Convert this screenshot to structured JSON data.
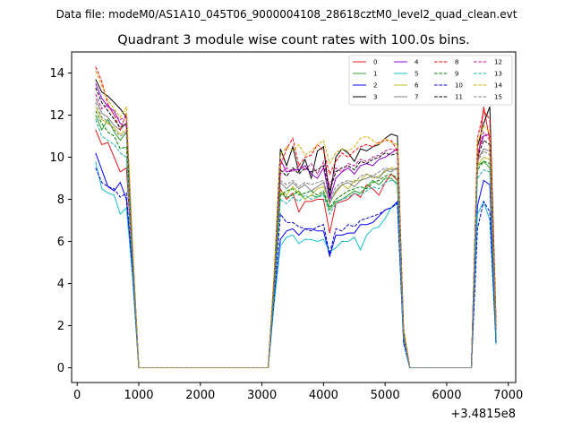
{
  "chart_data": {
    "type": "line",
    "suptitle": "Data file: modeM0/AS1A10_045T06_9000004108_28618cztM0_level2_quad_clean.evt",
    "title": "Quadrant 3 module wise count rates with 100.0s bins.",
    "xlabel": "",
    "ylabel": "",
    "x_offset_label": "+3.4815e8",
    "xlim": [
      -90,
      7120
    ],
    "ylim": [
      -0.7,
      15.0
    ],
    "x_ticks": [
      0,
      1000,
      2000,
      3000,
      4000,
      5000,
      6000,
      7000
    ],
    "y_ticks": [
      0,
      2,
      4,
      6,
      8,
      10,
      12,
      14
    ],
    "grid": false,
    "legend": "top-right, 4 columns",
    "x": [
      300,
      400,
      500,
      600,
      700,
      800,
      900,
      1000,
      1100,
      1200,
      1300,
      1400,
      1500,
      1600,
      1700,
      1800,
      1900,
      2000,
      2100,
      2200,
      2300,
      2400,
      2500,
      2600,
      2700,
      2800,
      2900,
      3000,
      3100,
      3200,
      3300,
      3400,
      3500,
      3600,
      3700,
      3800,
      3900,
      4000,
      4100,
      4200,
      4300,
      4400,
      4500,
      4600,
      4700,
      4800,
      4900,
      5000,
      5100,
      5200,
      5300,
      5400,
      5500,
      5600,
      5700,
      5800,
      5900,
      6000,
      6100,
      6200,
      6300,
      6400,
      6500,
      6600,
      6700,
      6800
    ],
    "series": [
      {
        "name": "0",
        "color": "#e41a1c",
        "dash": false,
        "values": [
          11.3,
          10.6,
          10.7,
          10.0,
          9.3,
          9.5,
          4.8,
          0,
          0,
          0,
          0,
          0,
          0,
          0,
          0,
          0,
          0,
          0,
          0,
          0,
          0,
          0,
          0,
          0,
          0,
          0,
          0,
          0,
          0,
          3.5,
          8.5,
          8.0,
          8.3,
          7.4,
          7.9,
          7.9,
          8.0,
          8.0,
          6.4,
          7.8,
          7.9,
          8.0,
          8.3,
          8.1,
          8.7,
          8.5,
          8.2,
          8.8,
          9.2,
          8.9,
          1.5,
          0,
          0,
          0,
          0,
          0,
          0,
          0,
          0,
          0,
          0,
          0,
          9.5,
          12.4,
          10.8,
          1.2
        ]
      },
      {
        "name": "1",
        "color": "#2ca02c",
        "dash": false,
        "values": [
          12.0,
          11.3,
          11.8,
          11.2,
          10.8,
          11.2,
          5.2,
          0,
          0,
          0,
          0,
          0,
          0,
          0,
          0,
          0,
          0,
          0,
          0,
          0,
          0,
          0,
          0,
          0,
          0,
          0,
          0,
          0,
          0,
          3.8,
          8.3,
          8.1,
          8.2,
          8.4,
          8.0,
          8.2,
          8.1,
          8.3,
          7.5,
          7.9,
          8.0,
          8.2,
          8.4,
          8.3,
          8.6,
          8.9,
          8.7,
          9.0,
          9.0,
          8.7,
          1.4,
          0,
          0,
          0,
          0,
          0,
          0,
          0,
          0,
          0,
          0,
          0,
          9.6,
          9.8,
          9.5,
          1.3
        ]
      },
      {
        "name": "2",
        "color": "#0000ff",
        "dash": false,
        "values": [
          10.2,
          9.4,
          8.6,
          8.4,
          8.8,
          8.0,
          4.4,
          0,
          0,
          0,
          0,
          0,
          0,
          0,
          0,
          0,
          0,
          0,
          0,
          0,
          0,
          0,
          0,
          0,
          0,
          0,
          0,
          0,
          0,
          3.2,
          6.1,
          6.5,
          6.6,
          6.3,
          6.6,
          6.6,
          6.5,
          6.5,
          5.3,
          6.3,
          6.3,
          6.4,
          6.4,
          6.8,
          6.8,
          6.9,
          7.2,
          7.5,
          7.6,
          7.9,
          1.2,
          0,
          0,
          0,
          0,
          0,
          0,
          0,
          0,
          0,
          0,
          0,
          7.7,
          8.9,
          8.7,
          1.2
        ]
      },
      {
        "name": "3",
        "color": "#000000",
        "dash": false,
        "values": [
          13.7,
          13.1,
          12.9,
          12.6,
          12.3,
          11.9,
          5.6,
          0,
          0,
          0,
          0,
          0,
          0,
          0,
          0,
          0,
          0,
          0,
          0,
          0,
          0,
          0,
          0,
          0,
          0,
          0,
          0,
          0,
          0,
          4.4,
          10.4,
          9.6,
          10.5,
          9.3,
          9.9,
          9.0,
          10.3,
          10.5,
          8.1,
          10.0,
          10.4,
          10.2,
          9.8,
          10.4,
          10.3,
          10.5,
          10.6,
          10.9,
          11.1,
          11.0,
          1.8,
          0,
          0,
          0,
          0,
          0,
          0,
          0,
          0,
          0,
          0,
          0,
          10.5,
          11.6,
          12.4,
          2.2
        ]
      },
      {
        "name": "4",
        "color": "#9400d3",
        "dash": false,
        "values": [
          13.5,
          12.8,
          12.4,
          12.2,
          11.6,
          11.5,
          5.5,
          0,
          0,
          0,
          0,
          0,
          0,
          0,
          0,
          0,
          0,
          0,
          0,
          0,
          0,
          0,
          0,
          0,
          0,
          0,
          0,
          0,
          0,
          4.2,
          9.9,
          9.3,
          9.4,
          9.4,
          9.6,
          9.2,
          9.0,
          9.5,
          8.0,
          9.0,
          9.3,
          9.5,
          9.2,
          9.6,
          9.7,
          9.6,
          9.9,
          10.0,
          10.2,
          10.4,
          1.7,
          0,
          0,
          0,
          0,
          0,
          0,
          0,
          0,
          0,
          0,
          0,
          10.2,
          11.0,
          11.1,
          2.0
        ]
      },
      {
        "name": "5",
        "color": "#17becf",
        "dash": false,
        "values": [
          9.8,
          8.5,
          8.3,
          8.2,
          7.3,
          7.6,
          4.3,
          0,
          0,
          0,
          0,
          0,
          0,
          0,
          0,
          0,
          0,
          0,
          0,
          0,
          0,
          0,
          0,
          0,
          0,
          0,
          0,
          0,
          0,
          3.1,
          5.8,
          6.2,
          6.3,
          5.9,
          6.1,
          6.1,
          6.0,
          6.1,
          5.5,
          5.7,
          6.0,
          6.0,
          6.2,
          5.6,
          6.3,
          6.6,
          6.7,
          7.1,
          7.6,
          7.8,
          1.2,
          0,
          0,
          0,
          0,
          0,
          0,
          0,
          0,
          0,
          0,
          0,
          7.3,
          7.9,
          7.0,
          1.1
        ]
      },
      {
        "name": "6",
        "color": "#bcbd22",
        "dash": false,
        "values": [
          12.4,
          11.8,
          11.6,
          11.4,
          11.1,
          11.3,
          5.3,
          0,
          0,
          0,
          0,
          0,
          0,
          0,
          0,
          0,
          0,
          0,
          0,
          0,
          0,
          0,
          0,
          0,
          0,
          0,
          0,
          0,
          0,
          3.9,
          8.4,
          8.2,
          8.6,
          8.3,
          8.0,
          8.2,
          8.5,
          8.6,
          7.9,
          8.3,
          8.7,
          8.5,
          8.9,
          8.9,
          9.2,
          9.0,
          9.1,
          9.3,
          9.5,
          9.4,
          1.5,
          0,
          0,
          0,
          0,
          0,
          0,
          0,
          0,
          0,
          0,
          0,
          9.6,
          10.0,
          9.9,
          1.6
        ]
      },
      {
        "name": "7",
        "color": "#7f7f7f",
        "dash": false,
        "values": [
          12.8,
          12.1,
          11.9,
          11.5,
          11.3,
          11.6,
          5.4,
          0,
          0,
          0,
          0,
          0,
          0,
          0,
          0,
          0,
          0,
          0,
          0,
          0,
          0,
          0,
          0,
          0,
          0,
          0,
          0,
          0,
          0,
          4.0,
          8.8,
          8.5,
          8.8,
          8.5,
          8.7,
          8.4,
          8.6,
          8.8,
          7.8,
          8.4,
          8.7,
          8.8,
          8.6,
          8.9,
          9.0,
          9.1,
          9.0,
          9.4,
          9.3,
          9.5,
          1.6,
          0,
          0,
          0,
          0,
          0,
          0,
          0,
          0,
          0,
          0,
          0,
          9.9,
          10.4,
          10.3,
          1.7
        ]
      },
      {
        "name": "8",
        "color": "#ff0000",
        "dash": true,
        "values": [
          14.3,
          13.6,
          12.5,
          12.0,
          11.3,
          12.1,
          5.7,
          0,
          0,
          0,
          0,
          0,
          0,
          0,
          0,
          0,
          0,
          0,
          0,
          0,
          0,
          0,
          0,
          0,
          0,
          0,
          0,
          0,
          0,
          4.5,
          9.6,
          10.4,
          10.9,
          9.6,
          10.0,
          10.1,
          10.6,
          10.3,
          9.2,
          9.8,
          10.2,
          10.0,
          10.3,
          10.5,
          10.6,
          10.5,
          10.7,
          10.8,
          10.8,
          10.3,
          1.8,
          0,
          0,
          0,
          0,
          0,
          0,
          0,
          0,
          0,
          0,
          0,
          10.9,
          12.2,
          11.8,
          2.4
        ]
      },
      {
        "name": "9",
        "color": "#008000",
        "dash": true,
        "values": [
          12.2,
          11.6,
          11.2,
          11.0,
          10.4,
          10.5,
          5.1,
          0,
          0,
          0,
          0,
          0,
          0,
          0,
          0,
          0,
          0,
          0,
          0,
          0,
          0,
          0,
          0,
          0,
          0,
          0,
          0,
          0,
          0,
          3.7,
          8.2,
          8.4,
          8.5,
          8.2,
          8.3,
          8.4,
          8.2,
          8.4,
          7.6,
          8.0,
          8.2,
          8.4,
          8.5,
          8.6,
          8.5,
          8.8,
          8.9,
          9.1,
          9.2,
          9.0,
          1.4,
          0,
          0,
          0,
          0,
          0,
          0,
          0,
          0,
          0,
          0,
          0,
          9.4,
          9.8,
          9.7,
          1.5
        ]
      },
      {
        "name": "10",
        "color": "#0000cd",
        "dash": true,
        "values": [
          9.5,
          8.8,
          8.6,
          8.5,
          8.1,
          8.3,
          4.5,
          0,
          0,
          0,
          0,
          0,
          0,
          0,
          0,
          0,
          0,
          0,
          0,
          0,
          0,
          0,
          0,
          0,
          0,
          0,
          0,
          0,
          0,
          3.3,
          7.3,
          6.9,
          6.9,
          6.7,
          6.6,
          6.5,
          6.7,
          6.8,
          5.4,
          6.6,
          6.5,
          6.8,
          6.7,
          7.0,
          7.1,
          7.2,
          7.3,
          7.5,
          7.6,
          7.8,
          1.2,
          0,
          0,
          0,
          0,
          0,
          0,
          0,
          0,
          0,
          0,
          0,
          6.6,
          7.9,
          7.4,
          1.2
        ]
      },
      {
        "name": "11",
        "color": "#000000",
        "dash": true,
        "values": [
          13.3,
          12.6,
          12.2,
          11.8,
          11.4,
          11.6,
          5.4,
          0,
          0,
          0,
          0,
          0,
          0,
          0,
          0,
          0,
          0,
          0,
          0,
          0,
          0,
          0,
          0,
          0,
          0,
          0,
          0,
          0,
          0,
          4.2,
          9.4,
          9.1,
          9.5,
          9.2,
          9.5,
          9.3,
          9.4,
          9.6,
          8.4,
          9.3,
          9.5,
          9.6,
          9.4,
          9.8,
          9.7,
          9.9,
          10.0,
          10.2,
          10.1,
          10.2,
          1.7,
          0,
          0,
          0,
          0,
          0,
          0,
          0,
          0,
          0,
          0,
          0,
          10.0,
          10.8,
          10.6,
          1.8
        ]
      },
      {
        "name": "12",
        "color": "#c71585",
        "dash": true,
        "values": [
          13.0,
          12.3,
          12.5,
          12.0,
          11.8,
          11.9,
          5.5,
          0,
          0,
          0,
          0,
          0,
          0,
          0,
          0,
          0,
          0,
          0,
          0,
          0,
          0,
          0,
          0,
          0,
          0,
          0,
          0,
          0,
          0,
          4.1,
          9.2,
          9.5,
          9.3,
          9.6,
          9.4,
          9.7,
          9.2,
          9.8,
          8.6,
          9.5,
          9.3,
          9.7,
          9.6,
          9.9,
          9.8,
          10.0,
          10.1,
          10.3,
          10.4,
          10.3,
          1.7,
          0,
          0,
          0,
          0,
          0,
          0,
          0,
          0,
          0,
          0,
          0,
          10.1,
          11.2,
          10.8,
          1.9
        ]
      },
      {
        "name": "13",
        "color": "#20b2aa",
        "dash": true,
        "values": [
          11.8,
          11.0,
          10.8,
          10.6,
          10.2,
          10.0,
          4.9,
          0,
          0,
          0,
          0,
          0,
          0,
          0,
          0,
          0,
          0,
          0,
          0,
          0,
          0,
          0,
          0,
          0,
          0,
          0,
          0,
          0,
          0,
          3.6,
          8.0,
          7.8,
          8.1,
          7.9,
          8.2,
          8.0,
          8.1,
          8.2,
          7.3,
          7.8,
          8.0,
          8.1,
          8.3,
          8.2,
          8.4,
          8.6,
          8.5,
          8.8,
          8.9,
          8.8,
          1.4,
          0,
          0,
          0,
          0,
          0,
          0,
          0,
          0,
          0,
          0,
          0,
          9.0,
          9.4,
          9.3,
          1.4
        ]
      },
      {
        "name": "14",
        "color": "#d4b000",
        "dash": true,
        "values": [
          14.1,
          13.4,
          12.7,
          12.3,
          11.9,
          12.4,
          5.8,
          0,
          0,
          0,
          0,
          0,
          0,
          0,
          0,
          0,
          0,
          0,
          0,
          0,
          0,
          0,
          0,
          0,
          0,
          0,
          0,
          0,
          0,
          4.6,
          10.1,
          10.5,
          10.3,
          10.6,
          10.1,
          10.3,
          10.6,
          10.8,
          9.7,
          10.2,
          10.4,
          10.3,
          10.5,
          10.9,
          11.0,
          10.8,
          10.6,
          10.9,
          10.7,
          10.6,
          1.9,
          0,
          0,
          0,
          0,
          0,
          0,
          0,
          0,
          0,
          0,
          0,
          10.7,
          11.5,
          11.2,
          2.1
        ]
      },
      {
        "name": "15",
        "color": "#808080",
        "dash": true,
        "values": [
          12.6,
          11.9,
          11.7,
          11.3,
          11.0,
          11.2,
          5.3,
          0,
          0,
          0,
          0,
          0,
          0,
          0,
          0,
          0,
          0,
          0,
          0,
          0,
          0,
          0,
          0,
          0,
          0,
          0,
          0,
          0,
          0,
          3.9,
          8.9,
          8.7,
          8.9,
          8.6,
          8.8,
          8.7,
          8.8,
          8.9,
          7.9,
          8.6,
          8.8,
          8.9,
          8.8,
          9.1,
          9.2,
          9.1,
          9.3,
          9.5,
          9.4,
          9.5,
          1.6,
          0,
          0,
          0,
          0,
          0,
          0,
          0,
          0,
          0,
          0,
          0,
          9.8,
          10.3,
          10.1,
          1.7
        ]
      }
    ]
  }
}
